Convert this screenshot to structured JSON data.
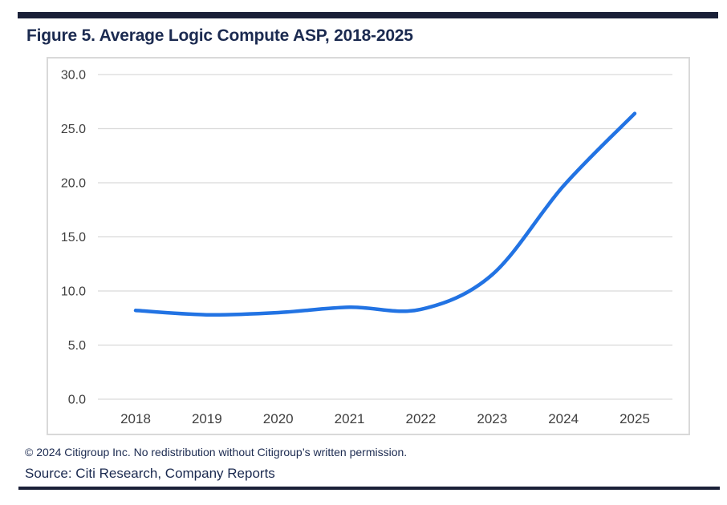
{
  "header": {
    "title": "Figure 5. Average Logic Compute ASP, 2018-2025"
  },
  "chart_data": {
    "type": "line",
    "title": "Figure 5. Average Logic Compute ASP, 2018-2025",
    "categories": [
      "2018",
      "2019",
      "2020",
      "2021",
      "2022",
      "2023",
      "2024",
      "2025"
    ],
    "series": [
      {
        "name": "Average Logic Compute ASP",
        "values": [
          8.2,
          7.8,
          8.0,
          8.5,
          8.3,
          11.5,
          19.7,
          26.4
        ]
      }
    ],
    "xlabel": "",
    "ylabel": "",
    "ylim": [
      0,
      30
    ],
    "ytick_step": 5,
    "ytick_decimals": 1,
    "ytick_labels": [
      "0.0",
      "5.0",
      "10.0",
      "15.0",
      "20.0",
      "25.0",
      "30.0"
    ],
    "grid": true,
    "legend": false,
    "smooth": true,
    "line_color": "#2273e3"
  },
  "footer": {
    "copyright": "© 2024 Citigroup Inc. No redistribution without Citigroup’s written permission.",
    "source": "Source: Citi Research, Company Reports"
  },
  "colors": {
    "bar_navy": "#1a2038",
    "text_navy": "#1b2a50",
    "line_blue": "#2273e3",
    "grid_gray": "#d9d9d9",
    "frame_border": "#d9d9d9",
    "axis_text": "#3f3f3f"
  }
}
